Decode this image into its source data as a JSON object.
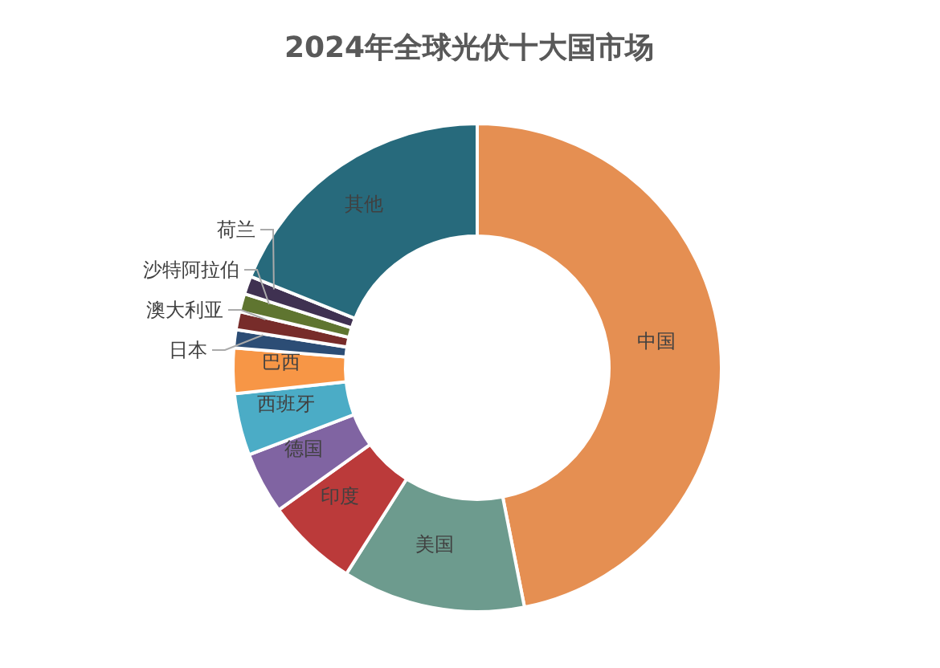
{
  "chart_data": {
    "type": "donut",
    "title": "2024年全球光伏十大国市场",
    "categories": [
      "中国",
      "美国",
      "印度",
      "德国",
      "西班牙",
      "巴西",
      "日本",
      "澳大利亚",
      "沙特阿拉伯",
      "荷兰",
      "其他"
    ],
    "values": [
      46.9,
      12.1,
      6.1,
      4.1,
      4.1,
      3.0,
      1.2,
      1.2,
      1.2,
      1.2,
      18.9
    ],
    "colors": [
      "#e58f52",
      "#6d9b8e",
      "#bb3a3a",
      "#8064a2",
      "#4bacc6",
      "#f79646",
      "#2c4d75",
      "#772c2a",
      "#5f7530",
      "#3f3151",
      "#276a7c"
    ],
    "legend": false
  }
}
